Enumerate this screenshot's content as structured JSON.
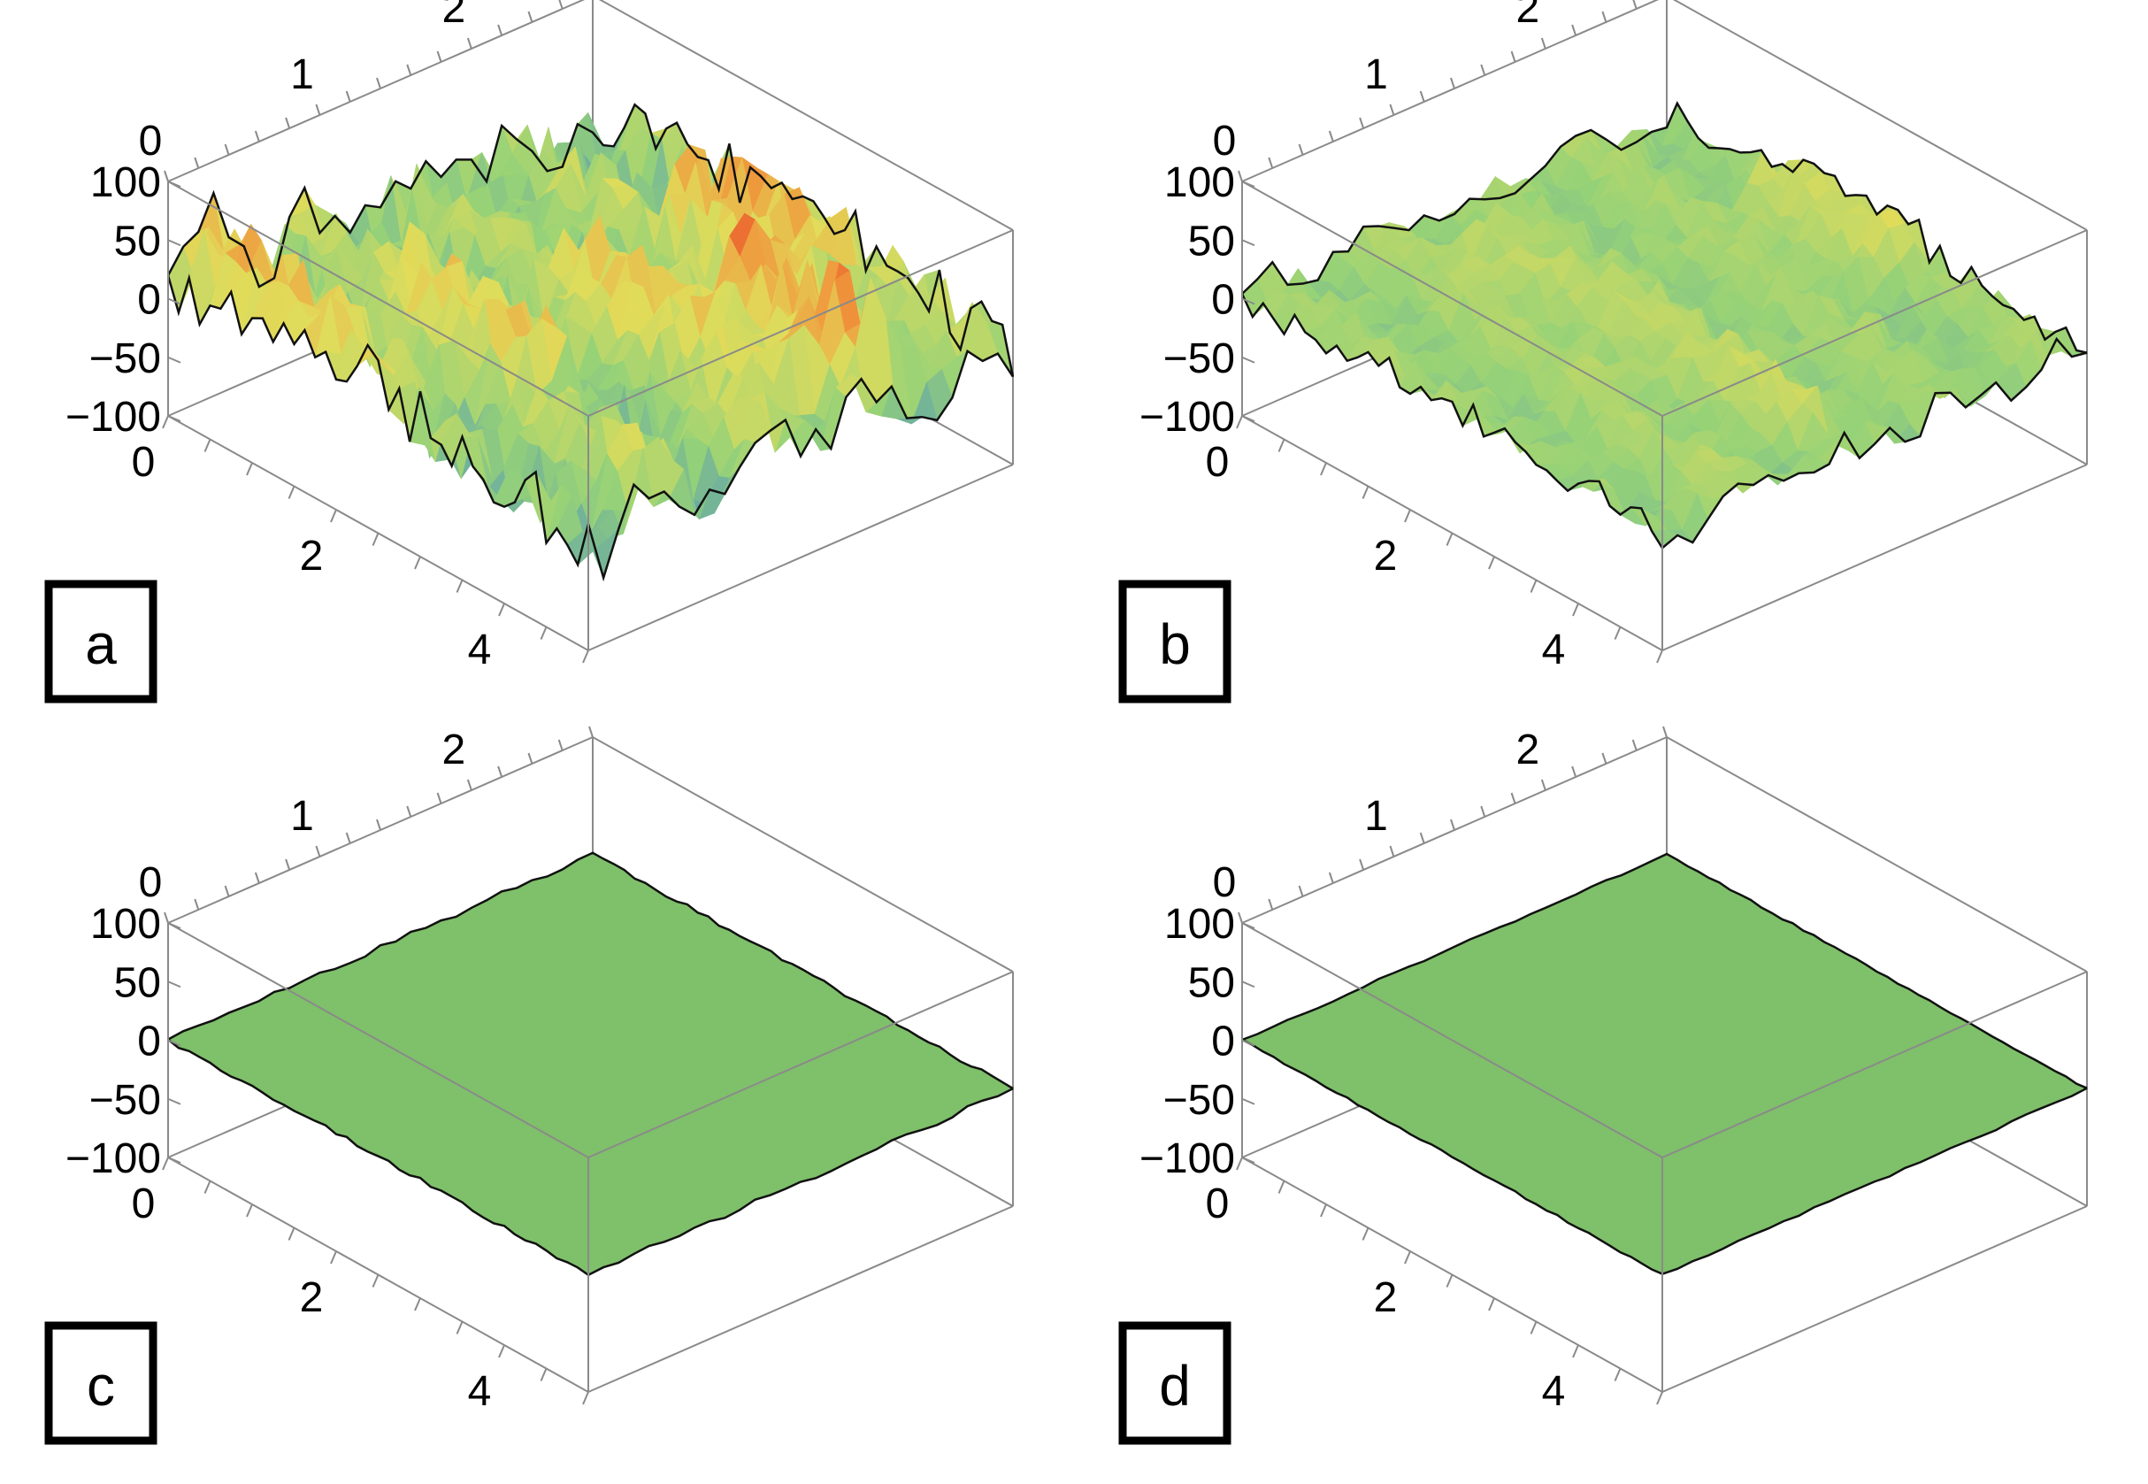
{
  "figure": {
    "panels": [
      "a",
      "b",
      "c",
      "d"
    ]
  },
  "colors": {
    "box": "#8a8a8a",
    "flat_surface": "#7fc06a",
    "surface_low": "#3f86c9",
    "surface_mid": "#a8d46a",
    "surface_high": "#e32b1f"
  },
  "chart_data": [
    {
      "type": "surface3d",
      "panel_label": "a",
      "axes": {
        "x_ticks": [
          "0",
          "2",
          "4"
        ],
        "y_ticks": [
          "0",
          "1",
          "2"
        ],
        "z_ticks": [
          "100",
          "50",
          "0",
          "−50",
          "−100"
        ],
        "xlim": [
          0,
          5
        ],
        "ylim": [
          0,
          2.8
        ],
        "zlim": [
          -100,
          100
        ]
      },
      "surface": {
        "description_values": "rough height field with ridges along x",
        "base_level": 0,
        "amplitude": 65,
        "ridges": [
          {
            "y": 0.25,
            "x_from": 0.0,
            "x_to": 2.6,
            "height": 55
          },
          {
            "y": 0.9,
            "x_from": 1.2,
            "x_to": 3.2,
            "height": 50
          },
          {
            "y": 1.6,
            "x_from": 1.8,
            "x_to": 4.6,
            "height": 60
          },
          {
            "y": 2.4,
            "x_from": 1.8,
            "x_to": 3.5,
            "height": 95
          },
          {
            "y": 2.0,
            "x_from": 3.2,
            "x_to": 4.8,
            "height": 70
          }
        ]
      }
    },
    {
      "type": "surface3d",
      "panel_label": "b",
      "axes": {
        "x_ticks": [
          "0",
          "2",
          "4"
        ],
        "y_ticks": [
          "0",
          "1",
          "2"
        ],
        "z_ticks": [
          "100",
          "50",
          "0",
          "−50",
          "−100"
        ],
        "xlim": [
          0,
          5
        ],
        "ylim": [
          0,
          2.8
        ],
        "zlim": [
          -100,
          100
        ]
      },
      "surface": {
        "description_values": "moderately rough height field",
        "base_level": 0,
        "amplitude": 30,
        "ridges": [
          {
            "y": 2.6,
            "x_from": 1.5,
            "x_to": 3.0,
            "height": 40
          },
          {
            "y": 1.2,
            "x_from": 0.5,
            "x_to": 4.5,
            "height": 25
          }
        ]
      }
    },
    {
      "type": "surface3d",
      "panel_label": "c",
      "axes": {
        "x_ticks": [
          "0",
          "2",
          "4"
        ],
        "y_ticks": [
          "0",
          "1",
          "2"
        ],
        "z_ticks": [
          "100",
          "50",
          "0",
          "−50",
          "−100"
        ],
        "xlim": [
          0,
          5
        ],
        "ylim": [
          0,
          2.8
        ],
        "zlim": [
          -100,
          100
        ]
      },
      "surface": {
        "description_values": "nearly flat surface",
        "base_level": 0,
        "amplitude": 4,
        "ridges": []
      }
    },
    {
      "type": "surface3d",
      "panel_label": "d",
      "axes": {
        "x_ticks": [
          "0",
          "2",
          "4"
        ],
        "y_ticks": [
          "0",
          "1",
          "2"
        ],
        "z_ticks": [
          "100",
          "50",
          "0",
          "−50",
          "−100"
        ],
        "xlim": [
          0,
          5
        ],
        "ylim": [
          0,
          2.8
        ],
        "zlim": [
          -100,
          100
        ]
      },
      "surface": {
        "description_values": "flat surface",
        "base_level": 0,
        "amplitude": 2,
        "ridges": []
      }
    }
  ]
}
